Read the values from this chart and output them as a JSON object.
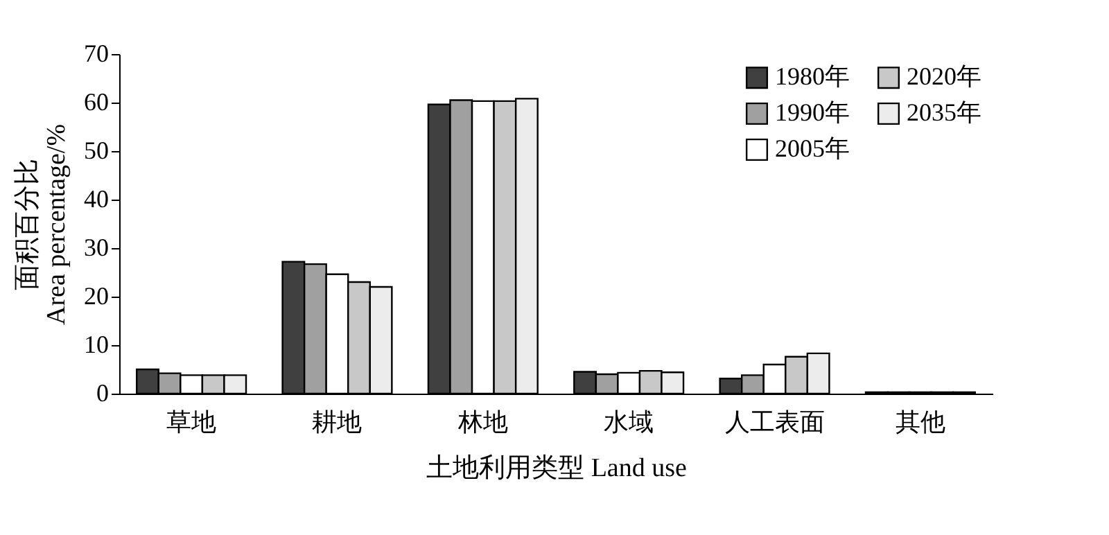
{
  "chart_data": {
    "type": "bar",
    "xlabel": "土地利用类型 Land use",
    "ylabel": "面积百分比\nArea percentage/%",
    "categories": [
      "草地",
      "耕地",
      "林地",
      "水域",
      "人工表面",
      "其他"
    ],
    "series": [
      {
        "name": "1980年",
        "color": "#404040",
        "values": [
          5.0,
          27.2,
          59.6,
          4.5,
          3.1,
          0.3
        ]
      },
      {
        "name": "1990年",
        "color": "#a0a0a0",
        "values": [
          4.2,
          26.7,
          60.5,
          4.0,
          3.8,
          0.3
        ]
      },
      {
        "name": "2005年",
        "color": "#ffffff",
        "values": [
          3.8,
          24.6,
          60.3,
          4.3,
          6.0,
          0.3
        ]
      },
      {
        "name": "2020年",
        "color": "#c8c8c8",
        "values": [
          3.8,
          23.0,
          60.3,
          4.7,
          7.6,
          0.3
        ]
      },
      {
        "name": "2035年",
        "color": "#ececec",
        "values": [
          3.8,
          22.0,
          60.8,
          4.4,
          8.3,
          0.3
        ]
      }
    ],
    "ylim": [
      0,
      70
    ],
    "yticks": [
      0,
      10,
      20,
      30,
      40,
      50,
      60,
      70
    ],
    "grid": false,
    "legend": "top right"
  }
}
